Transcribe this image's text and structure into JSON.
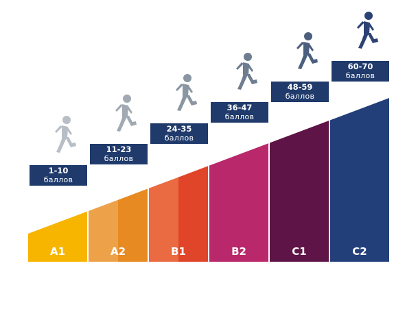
{
  "colors": {
    "box_bg": "#1f3a6b",
    "walkers": [
      "#b7bec5",
      "#a1aab3",
      "#8a96a2",
      "#6e7d8f",
      "#4c5f7e",
      "#2d4274"
    ]
  },
  "levels": [
    {
      "label": "A1",
      "score_range": "1-10",
      "score_unit": "баллов",
      "colors": [
        "#f7b500"
      ],
      "icon": "walking-person-icon"
    },
    {
      "label": "A2",
      "score_range": "11-23",
      "score_unit": "баллов",
      "colors": [
        "#eda24a",
        "#e88a22"
      ],
      "icon": "walking-person-icon"
    },
    {
      "label": "B1",
      "score_range": "24-35",
      "score_unit": "баллов",
      "colors": [
        "#ea6a42",
        "#e0452a"
      ],
      "icon": "walking-person-icon"
    },
    {
      "label": "B2",
      "score_range": "36-47",
      "score_unit": "баллов",
      "colors": [
        "#b8286a"
      ],
      "icon": "walking-person-icon"
    },
    {
      "label": "C1",
      "score_range": "48-59",
      "score_unit": "баллов",
      "colors": [
        "#5e1446"
      ],
      "icon": "walking-person-icon"
    },
    {
      "label": "C2",
      "score_range": "60-70",
      "score_unit": "баллов",
      "colors": [
        "#233f7a"
      ],
      "icon": "walking-person-icon"
    }
  ]
}
